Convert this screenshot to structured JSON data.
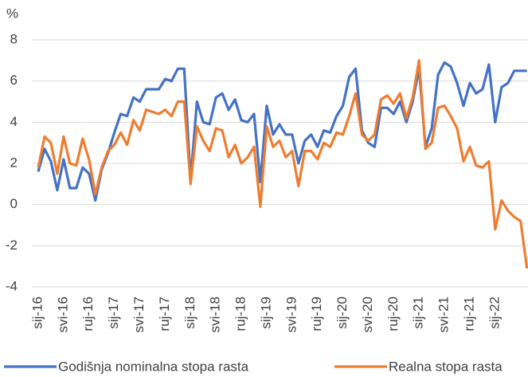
{
  "chart_data": {
    "type": "line",
    "y_label": "%",
    "categories": [
      "sij-16",
      null,
      null,
      null,
      "svi-16",
      null,
      null,
      null,
      "ruj-16",
      null,
      null,
      null,
      "sij-17",
      null,
      null,
      null,
      "svi-17",
      null,
      null,
      null,
      "ruj-17",
      null,
      null,
      null,
      "sij-18",
      null,
      null,
      null,
      "svi-18",
      null,
      null,
      null,
      "ruj-18",
      null,
      null,
      null,
      "sij-19",
      null,
      null,
      null,
      "svi-19",
      null,
      null,
      null,
      "ruj-19",
      null,
      null,
      null,
      "sij-20",
      null,
      null,
      null,
      "svi-20",
      null,
      null,
      null,
      "ruj-20",
      null,
      null,
      null,
      "sij-21",
      null,
      null,
      null,
      "svi-21",
      null,
      null,
      null,
      "ruj-21",
      null,
      null,
      null,
      "sij-22",
      null,
      null,
      null,
      null,
      null
    ],
    "series": [
      {
        "name": "Godišnja nominalna stopa rasta",
        "color": "#4472c4",
        "values": [
          1.6,
          2.7,
          2.1,
          0.7,
          2.2,
          0.8,
          0.8,
          1.8,
          1.5,
          0.2,
          1.7,
          2.5,
          3.5,
          4.4,
          4.3,
          5.2,
          5.0,
          5.6,
          5.6,
          5.6,
          6.1,
          6.0,
          6.6,
          6.6,
          1.2,
          5.0,
          4.0,
          3.9,
          5.2,
          5.4,
          4.6,
          5.1,
          4.1,
          4.0,
          4.4,
          1.1,
          4.8,
          3.4,
          3.9,
          3.4,
          3.4,
          2.0,
          3.1,
          3.4,
          2.8,
          3.6,
          3.5,
          4.3,
          4.8,
          6.2,
          6.6,
          3.6,
          3.0,
          2.8,
          4.7,
          4.7,
          4.4,
          5.0,
          4.0,
          5.0,
          6.6,
          2.8,
          3.7,
          6.3,
          6.9,
          6.7,
          5.9,
          4.8,
          5.9,
          5.4,
          5.6,
          6.8,
          4.0,
          5.7,
          5.9,
          6.5,
          6.5,
          6.5
        ]
      },
      {
        "name": "Realna stopa rasta",
        "color": "#ed7d31",
        "values": [
          1.8,
          3.3,
          3.0,
          1.5,
          3.3,
          2.0,
          1.9,
          3.2,
          2.2,
          0.5,
          1.8,
          2.6,
          2.9,
          3.5,
          2.9,
          4.1,
          3.6,
          4.6,
          4.5,
          4.4,
          4.6,
          4.3,
          5.0,
          5.0,
          1.0,
          3.8,
          3.1,
          2.6,
          3.7,
          3.6,
          2.3,
          2.9,
          2.0,
          2.3,
          2.8,
          -0.1,
          3.8,
          2.8,
          3.1,
          2.3,
          2.6,
          0.9,
          2.6,
          2.6,
          2.2,
          3.0,
          2.8,
          3.5,
          3.4,
          4.3,
          5.4,
          3.4,
          3.1,
          3.4,
          5.1,
          5.3,
          4.9,
          5.4,
          4.2,
          5.2,
          7.0,
          2.7,
          3.0,
          4.7,
          4.8,
          4.3,
          3.7,
          2.1,
          2.8,
          1.9,
          1.8,
          2.1,
          -1.2,
          0.2,
          -0.3,
          -0.6,
          -0.8,
          -3.1
        ]
      }
    ],
    "ylim": [
      -4,
      8
    ],
    "yticks": [
      -4,
      -2,
      0,
      2,
      4,
      6,
      8
    ],
    "grid": true,
    "legend": "bottom"
  }
}
